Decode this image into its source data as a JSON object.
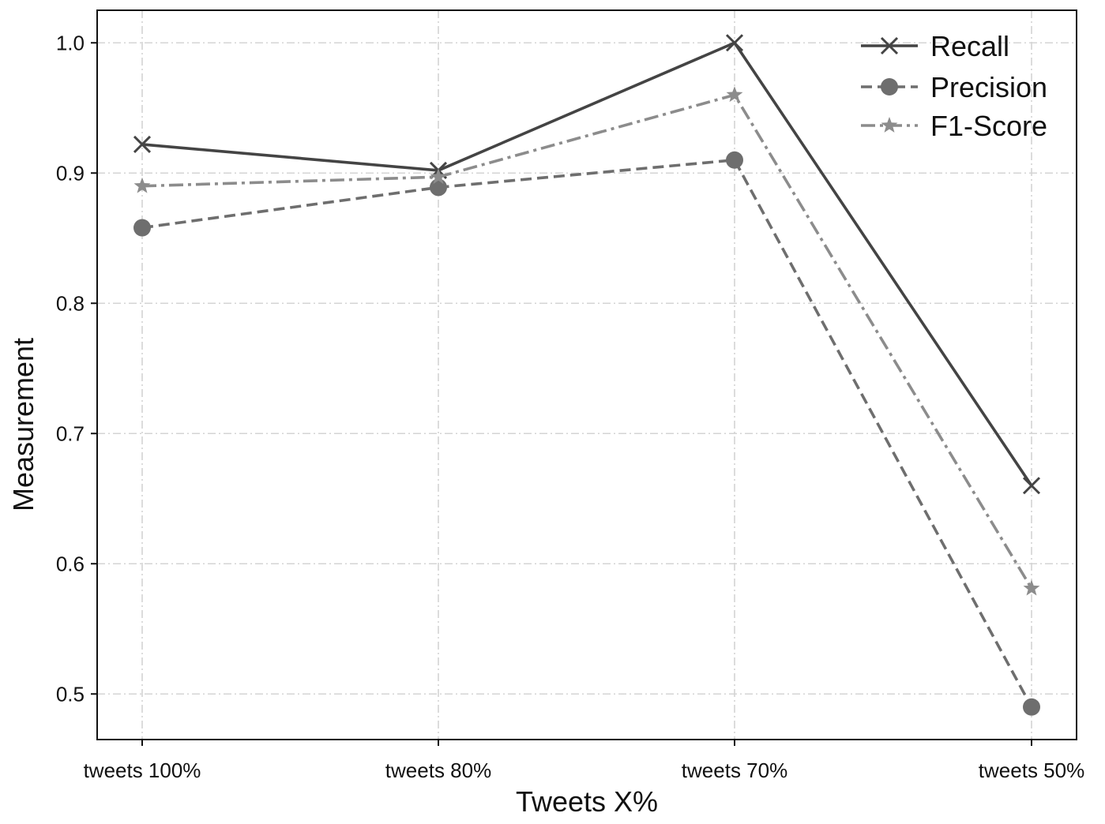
{
  "chart_data": {
    "type": "line",
    "title": "",
    "xlabel": "Tweets X%",
    "ylabel": "Measurement",
    "categories": [
      "tweets 100%",
      "tweets 80%",
      "tweets 70%",
      "tweets 50%"
    ],
    "ylim": [
      0.465,
      1.025
    ],
    "yticks": [
      0.5,
      0.6,
      0.7,
      0.8,
      0.9,
      1.0
    ],
    "ytick_labels": [
      "0.5",
      "0.6",
      "0.7",
      "0.8",
      "0.9",
      "1.0"
    ],
    "grid": true,
    "legend_position": "top-right",
    "series": [
      {
        "name": "Recall",
        "values": [
          0.922,
          0.902,
          1.0,
          0.66
        ],
        "color": "#444444",
        "line_style": "solid",
        "marker": "x"
      },
      {
        "name": "Precision",
        "values": [
          0.858,
          0.889,
          0.91,
          0.49
        ],
        "color": "#6e6e6e",
        "line_style": "dashed",
        "marker": "circle"
      },
      {
        "name": "F1-Score",
        "values": [
          0.89,
          0.897,
          0.96,
          0.581
        ],
        "color": "#8c8c8c",
        "line_style": "dashdot",
        "marker": "star"
      }
    ]
  }
}
